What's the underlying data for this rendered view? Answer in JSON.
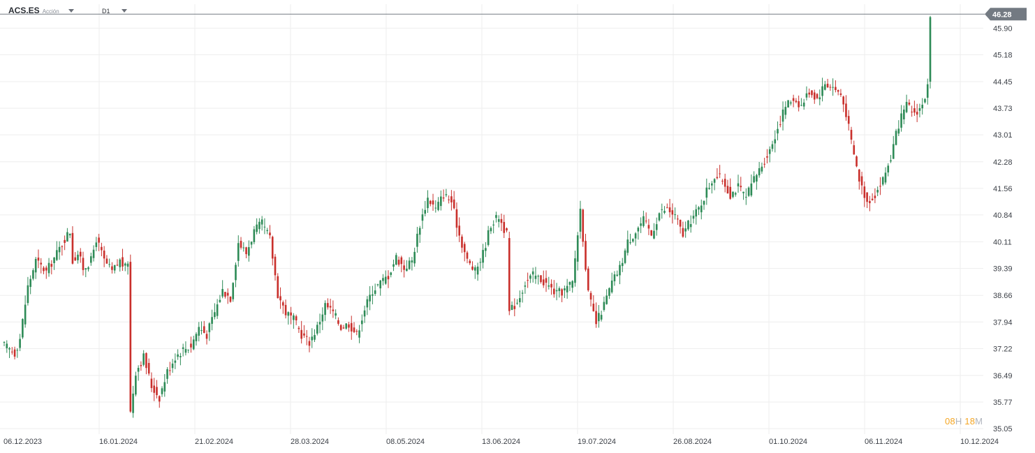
{
  "header": {
    "symbol": "ACS.ES",
    "instrument_type": "Acción",
    "timeframe": "D1",
    "symbol_dropdown_icon": "chevron-down-icon",
    "timeframe_dropdown_icon": "chevron-down-icon"
  },
  "countdown": {
    "hours": "08",
    "hours_unit": "H",
    "minutes": "18",
    "minutes_unit": "M"
  },
  "colors": {
    "up": "#2e8b57",
    "down": "#c9302c",
    "grid": "#eeeeee",
    "last_price_bg": "#737a82",
    "last_price_line": "#737a82",
    "countdown": "#f5a623"
  },
  "chart_data": {
    "type": "candlestick",
    "title": "",
    "last_price": "46.28",
    "grid": true,
    "y_axis": {
      "position": "right",
      "ticks": [
        "45.90",
        "45.18",
        "44.45",
        "43.73",
        "43.01",
        "42.28",
        "41.56",
        "40.84",
        "40.11",
        "39.39",
        "38.66",
        "37.94",
        "37.22",
        "36.49",
        "35.77",
        "35.05"
      ],
      "range": [
        34.9,
        46.55
      ]
    },
    "x_axis": {
      "labels": [
        "06.12.2023",
        "16.01.2024",
        "21.02.2024",
        "28.03.2024",
        "08.05.2024",
        "13.06.2024",
        "19.07.2024",
        "26.08.2024",
        "01.10.2024",
        "06.11.2024",
        "10.12.2024"
      ]
    },
    "close_path": [
      [
        0,
        37.3
      ],
      [
        4,
        37.1
      ],
      [
        6,
        37.5
      ],
      [
        9,
        38.9
      ],
      [
        12,
        39.6
      ],
      [
        16,
        39.3
      ],
      [
        20,
        39.8
      ],
      [
        23,
        40.2
      ],
      [
        25,
        40.4
      ],
      [
        26,
        39.6
      ],
      [
        28,
        39.8
      ],
      [
        30,
        39.4
      ],
      [
        33,
        39.6
      ],
      [
        35,
        40.2
      ],
      [
        38,
        39.6
      ],
      [
        41,
        39.3
      ],
      [
        44,
        39.6
      ],
      [
        46,
        39.4
      ],
      [
        47,
        39.6
      ],
      [
        48,
        35.5
      ],
      [
        50,
        36.6
      ],
      [
        53,
        37.0
      ],
      [
        56,
        36.2
      ],
      [
        59,
        35.9
      ],
      [
        62,
        36.6
      ],
      [
        65,
        37.0
      ],
      [
        68,
        37.2
      ],
      [
        71,
        37.3
      ],
      [
        74,
        37.8
      ],
      [
        77,
        37.6
      ],
      [
        80,
        38.2
      ],
      [
        83,
        38.8
      ],
      [
        86,
        38.6
      ],
      [
        89,
        40.1
      ],
      [
        92,
        39.8
      ],
      [
        95,
        40.4
      ],
      [
        98,
        40.6
      ],
      [
        101,
        40.2
      ],
      [
        104,
        38.7
      ],
      [
        107,
        38.2
      ],
      [
        110,
        38.0
      ],
      [
        113,
        37.6
      ],
      [
        116,
        37.4
      ],
      [
        119,
        37.8
      ],
      [
        122,
        38.4
      ],
      [
        125,
        38.2
      ],
      [
        128,
        37.8
      ],
      [
        131,
        37.9
      ],
      [
        134,
        37.6
      ],
      [
        137,
        38.3
      ],
      [
        140,
        38.8
      ],
      [
        143,
        39.0
      ],
      [
        146,
        39.2
      ],
      [
        149,
        39.7
      ],
      [
        152,
        39.4
      ],
      [
        155,
        39.6
      ],
      [
        158,
        40.6
      ],
      [
        161,
        41.3
      ],
      [
        164,
        41.0
      ],
      [
        167,
        41.4
      ],
      [
        170,
        41.2
      ],
      [
        173,
        40.3
      ],
      [
        176,
        39.6
      ],
      [
        179,
        39.3
      ],
      [
        182,
        39.8
      ],
      [
        185,
        40.6
      ],
      [
        188,
        40.8
      ],
      [
        191,
        40.3
      ],
      [
        192,
        38.2
      ],
      [
        195,
        38.5
      ],
      [
        198,
        39.0
      ],
      [
        201,
        39.2
      ],
      [
        204,
        39.1
      ],
      [
        207,
        38.9
      ],
      [
        210,
        38.7
      ],
      [
        213,
        38.8
      ],
      [
        216,
        39.0
      ],
      [
        219,
        41.0
      ],
      [
        222,
        38.7
      ],
      [
        225,
        37.9
      ],
      [
        228,
        38.4
      ],
      [
        231,
        39.0
      ],
      [
        234,
        39.4
      ],
      [
        237,
        40.1
      ],
      [
        240,
        40.4
      ],
      [
        243,
        40.7
      ],
      [
        246,
        40.3
      ],
      [
        249,
        40.9
      ],
      [
        252,
        41.0
      ],
      [
        255,
        40.8
      ],
      [
        258,
        40.3
      ],
      [
        261,
        40.7
      ],
      [
        264,
        41.0
      ],
      [
        267,
        41.5
      ],
      [
        270,
        41.9
      ],
      [
        273,
        41.8
      ],
      [
        276,
        41.4
      ],
      [
        279,
        41.6
      ],
      [
        282,
        41.3
      ],
      [
        285,
        41.8
      ],
      [
        288,
        42.2
      ],
      [
        291,
        42.6
      ],
      [
        294,
        43.2
      ],
      [
        297,
        43.8
      ],
      [
        300,
        44.0
      ],
      [
        303,
        43.8
      ],
      [
        306,
        44.2
      ],
      [
        309,
        44.0
      ],
      [
        312,
        44.4
      ],
      [
        315,
        44.3
      ],
      [
        318,
        44.1
      ],
      [
        320,
        43.6
      ],
      [
        322,
        42.8
      ],
      [
        325,
        41.8
      ],
      [
        328,
        41.2
      ],
      [
        331,
        41.4
      ],
      [
        334,
        41.8
      ],
      [
        337,
        42.4
      ],
      [
        340,
        43.3
      ],
      [
        343,
        43.8
      ],
      [
        346,
        43.6
      ],
      [
        349,
        43.8
      ],
      [
        351,
        44.3
      ],
      [
        352,
        46.2
      ]
    ],
    "candle_count": 353
  }
}
